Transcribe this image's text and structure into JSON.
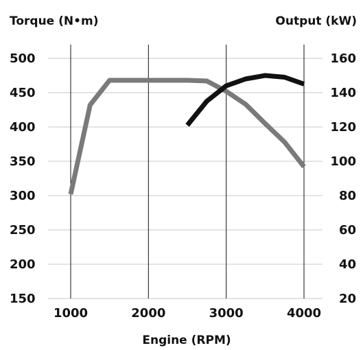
{
  "chart_data": {
    "type": "line",
    "y_left_title": "Torque (N•m)",
    "y_right_title": "Output (kW)",
    "x_title": "Engine (RPM)",
    "x_ticks": [
      1000,
      2000,
      3000,
      4000
    ],
    "x_range": [
      1000,
      4000
    ],
    "y_left_ticks": [
      500,
      450,
      400,
      350,
      300,
      250,
      200,
      150
    ],
    "y_left_range": [
      150,
      500
    ],
    "y_right_ticks": [
      160,
      140,
      120,
      100,
      80,
      60,
      40,
      20
    ],
    "y_right_range": [
      20,
      160
    ],
    "grid": true,
    "series": [
      {
        "axis": "left",
        "color": "#7a7a7a",
        "x": [
          1000,
          1250,
          1500,
          2000,
          2500,
          2750,
          3000,
          3250,
          3500,
          3750,
          4000
        ],
        "y": [
          302,
          432,
          468,
          468,
          468,
          467,
          452,
          433,
          405,
          378,
          342
        ]
      },
      {
        "axis": "right",
        "color": "#111111",
        "x": [
          2500,
          2750,
          3000,
          3250,
          3500,
          3750,
          4000
        ],
        "y": [
          121,
          135,
          144,
          148,
          150,
          149,
          145
        ]
      }
    ]
  }
}
